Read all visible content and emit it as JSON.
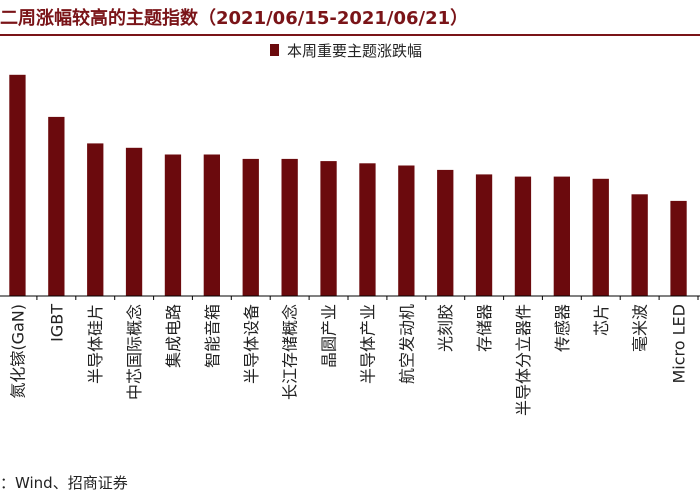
{
  "title": "二周涨幅较高的主题指数（2021/06/15-2021/06/21）",
  "source_note": "：Wind、招商证券",
  "colors": {
    "bar": "#6b0a0d",
    "title": "#7a1418",
    "axis": "#000000"
  },
  "chart_data": {
    "type": "bar",
    "legend_position": "top-center",
    "grid": false,
    "series": [
      {
        "name": "本周重要主题涨跌幅",
        "values": [
          10.0,
          8.1,
          6.9,
          6.7,
          6.4,
          6.4,
          6.2,
          6.2,
          6.1,
          6.0,
          5.9,
          5.7,
          5.5,
          5.4,
          5.4,
          5.3,
          4.6,
          4.3
        ]
      }
    ],
    "categories": [
      "氮化镓(GaN)",
      "IGBT",
      "半导体硅片",
      "中芯国际概念",
      "集成电路",
      "智能音箱",
      "半导体设备",
      "长江存储概念",
      "晶圆产业",
      "半导体产业",
      "航空发动机",
      "光刻胶",
      "存储器",
      "半导体分立器件",
      "传感器",
      "芯片",
      "毫米波",
      "Micro LED"
    ],
    "ylim": [
      0,
      10.4
    ]
  }
}
